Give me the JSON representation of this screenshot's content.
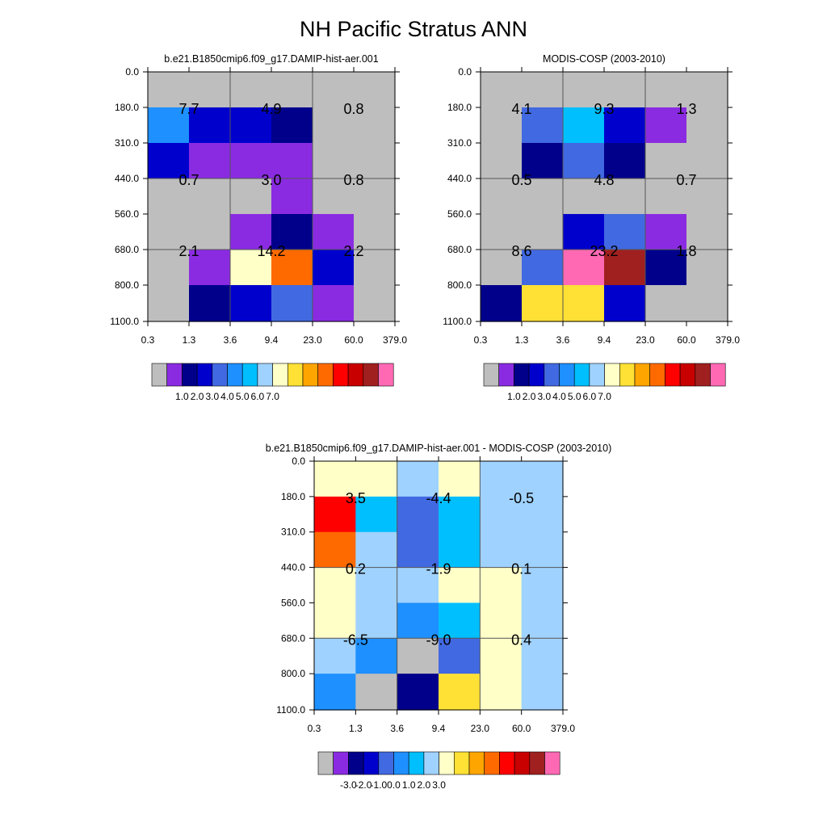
{
  "title": "NH Pacific Stratus ANN",
  "palette": {
    "abs": [
      "#bebebe",
      "#8a2be2",
      "#00008b",
      "#0000cd",
      "#4169e1",
      "#1e90ff",
      "#00bfff",
      "#a0d2ff",
      "#ffffc8",
      "#ffe135",
      "#ffa500",
      "#ff6a00",
      "#ff0000",
      "#c80000",
      "#a02020",
      "#ff69b4"
    ],
    "diff": [
      "#bebebe",
      "#8a2be2",
      "#00008b",
      "#0000cd",
      "#4169e1",
      "#1e90ff",
      "#00bfff",
      "#a0d2ff",
      "#ffffc8",
      "#ffe135",
      "#ffa500",
      "#ff6a00",
      "#ff0000",
      "#c80000",
      "#a02020",
      "#ff69b4"
    ]
  },
  "chart_data": [
    {
      "type": "heatmap",
      "title": "b.e21.B1850cmip6.f09_g17.DAMIP-hist-aer.001",
      "x_ticks": [
        "0.3",
        "1.3",
        "3.6",
        "9.4",
        "23.0",
        "60.0",
        "379.0"
      ],
      "y_ticks": [
        "0.0",
        "180.0",
        "310.0",
        "440.0",
        "560.0",
        "680.0",
        "800.0",
        "1100.0"
      ],
      "colorbar_labels": [
        "1.0",
        "2.0",
        "3.0",
        "4.0",
        "5.0",
        "6.0",
        "7.0"
      ],
      "cells": [
        [
          0,
          0,
          0,
          0,
          0,
          0
        ],
        [
          5,
          3,
          3,
          2,
          0,
          0
        ],
        [
          3,
          1,
          1,
          1,
          0,
          0
        ],
        [
          0,
          0,
          0,
          1,
          0,
          0
        ],
        [
          0,
          0,
          1,
          2,
          1,
          0
        ],
        [
          0,
          1,
          8,
          11,
          3,
          0
        ],
        [
          0,
          2,
          3,
          4,
          1,
          0
        ]
      ],
      "labels": [
        [
          "7.7",
          "4.9",
          "0.8"
        ],
        [
          "0.7",
          "3.0",
          "0.8"
        ],
        [
          "2.1",
          "14.2",
          "2.2"
        ]
      ]
    },
    {
      "type": "heatmap",
      "title": "MODIS-COSP (2003-2010)",
      "x_ticks": [
        "0.3",
        "1.3",
        "3.6",
        "9.4",
        "23.0",
        "60.0",
        "379.0"
      ],
      "y_ticks": [
        "0.0",
        "180.0",
        "310.0",
        "440.0",
        "560.0",
        "680.0",
        "800.0",
        "1100.0"
      ],
      "colorbar_labels": [
        "1.0",
        "2.0",
        "3.0",
        "4.0",
        "5.0",
        "6.0",
        "7.0"
      ],
      "cells": [
        [
          0,
          0,
          0,
          0,
          0,
          0
        ],
        [
          0,
          4,
          6,
          3,
          1,
          0
        ],
        [
          0,
          2,
          4,
          2,
          0,
          0
        ],
        [
          0,
          0,
          0,
          0,
          0,
          0
        ],
        [
          0,
          0,
          3,
          4,
          1,
          0
        ],
        [
          0,
          4,
          15,
          14,
          2,
          0
        ],
        [
          2,
          9,
          9,
          3,
          0,
          0
        ]
      ],
      "labels": [
        [
          "4.1",
          "9.3",
          "1.3"
        ],
        [
          "0.5",
          "4.8",
          "0.7"
        ],
        [
          "8.6",
          "23.2",
          "1.8"
        ]
      ]
    },
    {
      "type": "heatmap",
      "title": "b.e21.B1850cmip6.f09_g17.DAMIP-hist-aer.001 - MODIS-COSP (2003-2010)",
      "x_ticks": [
        "0.3",
        "1.3",
        "3.6",
        "9.4",
        "23.0",
        "60.0",
        "379.0"
      ],
      "y_ticks": [
        "0.0",
        "180.0",
        "310.0",
        "440.0",
        "560.0",
        "680.0",
        "800.0",
        "1100.0"
      ],
      "colorbar_labels": [
        "-3.0",
        "-2.0",
        "-1.0",
        "0.0",
        "1.0",
        "2.0",
        "3.0"
      ],
      "cells": [
        [
          8,
          8,
          7,
          8,
          7,
          7
        ],
        [
          12,
          6,
          4,
          6,
          7,
          7
        ],
        [
          11,
          7,
          4,
          6,
          7,
          7
        ],
        [
          8,
          7,
          7,
          8,
          8,
          7
        ],
        [
          8,
          7,
          5,
          6,
          8,
          7
        ],
        [
          7,
          5,
          0,
          4,
          8,
          7
        ],
        [
          5,
          0,
          2,
          9,
          8,
          7
        ]
      ],
      "labels": [
        [
          "3.5",
          "-4.4",
          "-0.5"
        ],
        [
          "0.2",
          "-1.9",
          "0.1"
        ],
        [
          "-6.5",
          "-9.0",
          "0.4"
        ]
      ]
    }
  ]
}
